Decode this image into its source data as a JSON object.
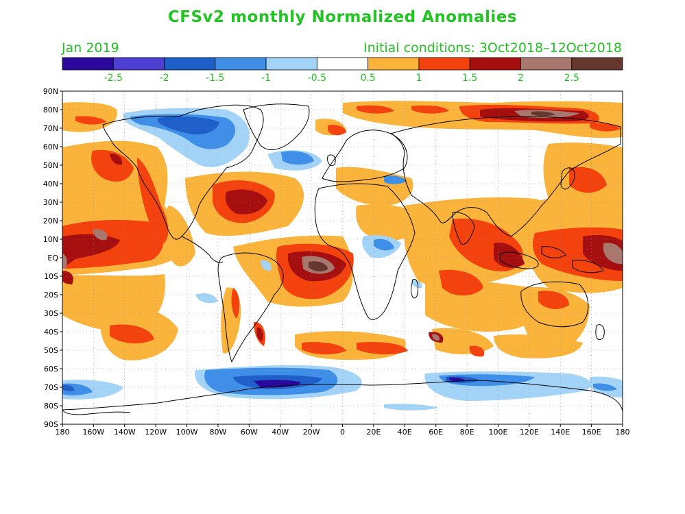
{
  "title": "CFSv2 monthly Normalized Anomalies",
  "valid_month": "Jan 2019",
  "initial_conditions": "Initial conditions: 3Oct2018–12Oct2018",
  "colorbar": {
    "colors": [
      "#2a0a9c",
      "#4d3fd2",
      "#1f5fc9",
      "#3f8ee8",
      "#a3d4f7",
      "#ffffff",
      "#fbb43b",
      "#f4420f",
      "#a50f0f",
      "#a8776d",
      "#65382e"
    ],
    "labels": [
      "-2.5",
      "-2",
      "-1.5",
      "-1",
      "-0.5",
      "0.5",
      "1",
      "1.5",
      "2",
      "2.5"
    ]
  },
  "map": {
    "lat_labels": [
      "90N",
      "80N",
      "70N",
      "60N",
      "50N",
      "40N",
      "30N",
      "20N",
      "10N",
      "EQ",
      "10S",
      "20S",
      "30S",
      "40S",
      "50S",
      "60S",
      "70S",
      "80S",
      "90S"
    ],
    "lon_labels": [
      "180",
      "160W",
      "140W",
      "120W",
      "100W",
      "80W",
      "60W",
      "40W",
      "20W",
      "0",
      "20E",
      "40E",
      "60E",
      "80E",
      "100E",
      "120E",
      "140E",
      "160E",
      "180"
    ]
  }
}
